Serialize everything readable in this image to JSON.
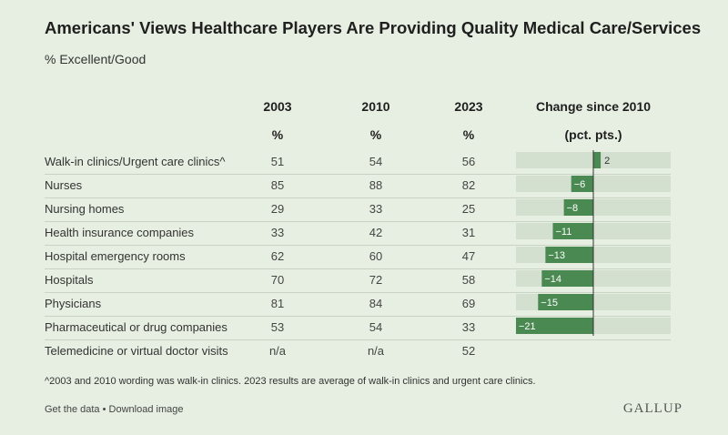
{
  "title": "Americans' Views Healthcare Players Are Providing Quality Medical Care/Services",
  "subtitle": "% Excellent/Good",
  "columns": {
    "y2003": "2003",
    "y2010": "2010",
    "y2023": "2023",
    "unit": "%",
    "change_line1": "Change since 2010",
    "change_line2": "(pct. pts.)"
  },
  "rows": [
    {
      "label": "Walk-in clinics/Urgent care clinics^",
      "v2003": "51",
      "v2010": "54",
      "v2023": "56"
    },
    {
      "label": "Nurses",
      "v2003": "85",
      "v2010": "88",
      "v2023": "82"
    },
    {
      "label": "Nursing homes",
      "v2003": "29",
      "v2010": "33",
      "v2023": "25"
    },
    {
      "label": "Health insurance companies",
      "v2003": "33",
      "v2010": "42",
      "v2023": "31"
    },
    {
      "label": "Hospital emergency rooms",
      "v2003": "62",
      "v2010": "60",
      "v2023": "47"
    },
    {
      "label": "Hospitals",
      "v2003": "70",
      "v2010": "72",
      "v2023": "58"
    },
    {
      "label": "Physicians",
      "v2003": "81",
      "v2010": "84",
      "v2023": "69"
    },
    {
      "label": "Pharmaceutical or drug companies",
      "v2003": "53",
      "v2010": "54",
      "v2023": "33"
    },
    {
      "label": "Telemedicine or virtual doctor visits",
      "v2003": "n/a",
      "v2010": "n/a",
      "v2023": "52"
    }
  ],
  "footnote": "^2003 and 2010 wording was walk-in clinics. 2023 results are average of walk-in clinics and urgent care clinics.",
  "links": {
    "get_data": "Get the data",
    "separator": "•",
    "download": "Download image"
  },
  "brand": "GALLUP",
  "colors": {
    "bar": "#4a8a52",
    "track": "#d3dfcf",
    "zero_line": "#333333"
  },
  "chart_data": {
    "type": "bar",
    "orientation": "horizontal",
    "title": "Change since 2010 (pct. pts.)",
    "categories": [
      "Walk-in clinics/Urgent care clinics^",
      "Nurses",
      "Nursing homes",
      "Health insurance companies",
      "Hospital emergency rooms",
      "Hospitals",
      "Physicians",
      "Pharmaceutical or drug companies"
    ],
    "values": [
      2,
      -6,
      -8,
      -11,
      -13,
      -14,
      -15,
      -21
    ],
    "value_labels": [
      "2",
      "−6",
      "−8",
      "−11",
      "−13",
      "−14",
      "−15",
      "−21"
    ],
    "xlim": [
      -21,
      21
    ],
    "grid": false
  }
}
